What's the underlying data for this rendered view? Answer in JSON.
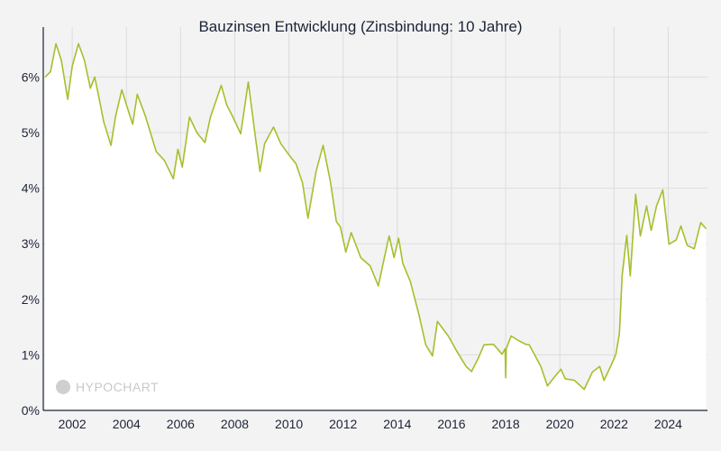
{
  "chart_data": {
    "type": "area",
    "title": "Bauzinsen Entwicklung (Zinsbindung: 10 Jahre)",
    "xlabel": "",
    "ylabel": "",
    "xlim": [
      2000.93,
      2025.45
    ],
    "ylim": [
      0,
      6.9
    ],
    "x_ticks": [
      2002,
      2004,
      2006,
      2008,
      2010,
      2012,
      2014,
      2016,
      2018,
      2020,
      2022,
      2024
    ],
    "x_tick_labels": [
      "2002",
      "2004",
      "2006",
      "2008",
      "2010",
      "2012",
      "2014",
      "2016",
      "2018",
      "2020",
      "2022",
      "2024"
    ],
    "y_ticks": [
      0,
      1,
      2,
      3,
      4,
      5,
      6
    ],
    "y_tick_labels": [
      "0%",
      "1%",
      "2%",
      "3%",
      "4%",
      "5%",
      "6%"
    ],
    "grid": true,
    "line_color": "#a4c02c",
    "series": [
      {
        "x": [
          2001.0,
          2001.2,
          2001.4,
          2001.6,
          2001.83,
          2002.0,
          2002.23,
          2002.45,
          2002.67,
          2002.83,
          2003.0,
          2003.16,
          2003.43,
          2003.6,
          2003.83,
          2004.0,
          2004.23,
          2004.4,
          2004.7,
          2005.1,
          2005.4,
          2005.73,
          2005.9,
          2006.06,
          2006.33,
          2006.6,
          2006.9,
          2007.1,
          2007.5,
          2007.7,
          2007.9,
          2008.22,
          2008.5,
          2008.76,
          2008.93,
          2009.1,
          2009.43,
          2009.7,
          2010.0,
          2010.26,
          2010.5,
          2010.7,
          2011.0,
          2011.26,
          2011.53,
          2011.75,
          2011.9,
          2012.1,
          2012.3,
          2012.65,
          2013.0,
          2013.3,
          2013.5,
          2013.7,
          2013.88,
          2014.05,
          2014.2,
          2014.48,
          2014.8,
          2015.05,
          2015.3,
          2015.48,
          2015.88,
          2016.2,
          2016.54,
          2016.74,
          2017.0,
          2017.2,
          2017.55,
          2017.87,
          2017.98,
          2018.0,
          2018.02,
          2018.2,
          2018.5,
          2018.74,
          2018.87,
          2019.3,
          2019.54,
          2019.8,
          2020.04,
          2020.2,
          2020.54,
          2020.9,
          2021.2,
          2021.47,
          2021.63,
          2021.9,
          2022.07,
          2022.2,
          2022.3,
          2022.47,
          2022.6,
          2022.8,
          2022.97,
          2023.2,
          2023.37,
          2023.57,
          2023.8,
          2024.03,
          2024.3,
          2024.47,
          2024.7,
          2024.96,
          2025.2,
          2025.4
        ],
        "y": [
          6.0,
          6.1,
          6.6,
          6.3,
          5.6,
          6.2,
          6.6,
          6.3,
          5.8,
          6.0,
          5.6,
          5.2,
          4.77,
          5.3,
          5.77,
          5.5,
          5.15,
          5.69,
          5.3,
          4.66,
          4.5,
          4.17,
          4.7,
          4.38,
          5.28,
          5.0,
          4.82,
          5.28,
          5.85,
          5.5,
          5.31,
          4.98,
          5.91,
          4.93,
          4.3,
          4.8,
          5.1,
          4.8,
          4.6,
          4.44,
          4.1,
          3.46,
          4.3,
          4.77,
          4.12,
          3.4,
          3.3,
          2.85,
          3.2,
          2.75,
          2.6,
          2.24,
          2.7,
          3.14,
          2.75,
          3.1,
          2.65,
          2.32,
          1.72,
          1.18,
          0.98,
          1.6,
          1.34,
          1.06,
          0.79,
          0.7,
          0.95,
          1.18,
          1.19,
          1.01,
          1.11,
          0.59,
          1.11,
          1.34,
          1.25,
          1.19,
          1.18,
          0.79,
          0.44,
          0.6,
          0.74,
          0.57,
          0.54,
          0.38,
          0.69,
          0.79,
          0.54,
          0.82,
          1.01,
          1.39,
          2.42,
          3.15,
          2.42,
          3.89,
          3.14,
          3.68,
          3.24,
          3.68,
          3.97,
          2.99,
          3.07,
          3.32,
          2.97,
          2.91,
          3.38,
          3.27
        ]
      }
    ]
  },
  "watermark": "HYPOCHART"
}
